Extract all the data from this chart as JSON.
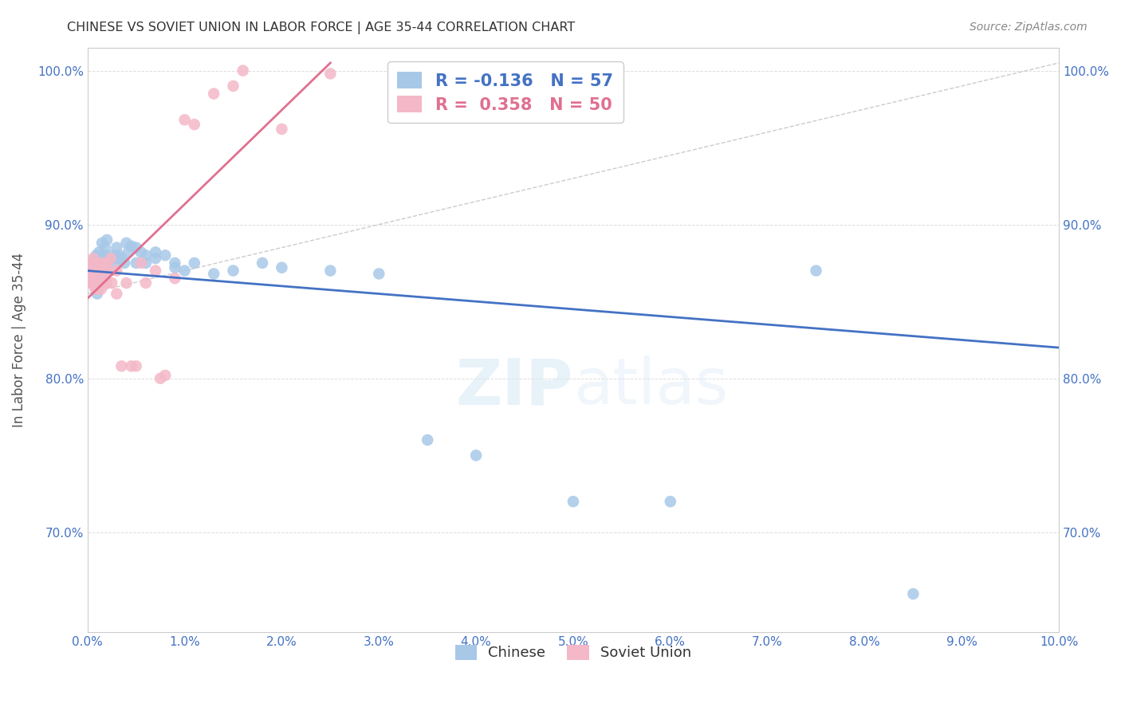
{
  "title": "CHINESE VS SOVIET UNION IN LABOR FORCE | AGE 35-44 CORRELATION CHART",
  "source": "Source: ZipAtlas.com",
  "ylabel": "In Labor Force | Age 35-44",
  "y_ticks": [
    0.7,
    0.8,
    0.9,
    1.0
  ],
  "xlim": [
    0.0,
    0.1
  ],
  "ylim": [
    0.635,
    1.015
  ],
  "chinese_R": -0.136,
  "chinese_N": 57,
  "soviet_R": 0.358,
  "soviet_N": 50,
  "chinese_color": "#a8c8e8",
  "soviet_color": "#f4b8c8",
  "chinese_line_color": "#4472c4",
  "soviet_line_color": "#e07090",
  "ref_line_color": "#cccccc",
  "chinese_x": [
    0.0005,
    0.0006,
    0.0007,
    0.0008,
    0.0008,
    0.0009,
    0.001,
    0.001,
    0.001,
    0.0012,
    0.0013,
    0.0014,
    0.0015,
    0.0015,
    0.0016,
    0.0017,
    0.0018,
    0.002,
    0.002,
    0.002,
    0.0022,
    0.0023,
    0.0025,
    0.0026,
    0.0028,
    0.003,
    0.003,
    0.0032,
    0.0035,
    0.0038,
    0.004,
    0.0042,
    0.0045,
    0.005,
    0.005,
    0.0055,
    0.006,
    0.006,
    0.007,
    0.007,
    0.008,
    0.009,
    0.009,
    0.01,
    0.011,
    0.013,
    0.015,
    0.018,
    0.02,
    0.025,
    0.03,
    0.035,
    0.04,
    0.05,
    0.06,
    0.075,
    0.085
  ],
  "chinese_y": [
    0.87,
    0.865,
    0.875,
    0.86,
    0.878,
    0.88,
    0.875,
    0.865,
    0.855,
    0.882,
    0.878,
    0.87,
    0.888,
    0.875,
    0.868,
    0.88,
    0.885,
    0.89,
    0.878,
    0.87,
    0.878,
    0.87,
    0.88,
    0.878,
    0.875,
    0.885,
    0.878,
    0.88,
    0.878,
    0.875,
    0.888,
    0.882,
    0.886,
    0.885,
    0.875,
    0.882,
    0.88,
    0.875,
    0.882,
    0.878,
    0.88,
    0.875,
    0.872,
    0.87,
    0.875,
    0.868,
    0.87,
    0.875,
    0.872,
    0.87,
    0.868,
    0.76,
    0.75,
    0.72,
    0.72,
    0.87,
    0.66
  ],
  "soviet_x": [
    0.0002,
    0.0003,
    0.0003,
    0.0004,
    0.0004,
    0.0005,
    0.0005,
    0.0006,
    0.0006,
    0.0007,
    0.0007,
    0.0008,
    0.0009,
    0.0009,
    0.001,
    0.001,
    0.0011,
    0.0012,
    0.0012,
    0.0013,
    0.0014,
    0.0015,
    0.0016,
    0.0016,
    0.0017,
    0.0018,
    0.002,
    0.002,
    0.0022,
    0.0024,
    0.0025,
    0.003,
    0.003,
    0.0035,
    0.004,
    0.0045,
    0.005,
    0.0055,
    0.006,
    0.007,
    0.0075,
    0.008,
    0.009,
    0.01,
    0.011,
    0.013,
    0.015,
    0.016,
    0.02,
    0.025
  ],
  "soviet_y": [
    0.87,
    0.862,
    0.875,
    0.865,
    0.87,
    0.862,
    0.87,
    0.868,
    0.878,
    0.862,
    0.87,
    0.858,
    0.87,
    0.865,
    0.86,
    0.875,
    0.858,
    0.87,
    0.862,
    0.87,
    0.858,
    0.875,
    0.87,
    0.862,
    0.862,
    0.868,
    0.875,
    0.862,
    0.87,
    0.878,
    0.862,
    0.87,
    0.855,
    0.808,
    0.862,
    0.808,
    0.808,
    0.875,
    0.862,
    0.87,
    0.8,
    0.802,
    0.865,
    0.968,
    0.965,
    0.985,
    0.99,
    1.0,
    0.962,
    0.998
  ],
  "chinese_trend_x": [
    0.0,
    0.1
  ],
  "chinese_trend_y": [
    0.87,
    0.82
  ],
  "soviet_trend_x": [
    0.0,
    0.025
  ],
  "soviet_trend_y": [
    0.852,
    1.005
  ]
}
